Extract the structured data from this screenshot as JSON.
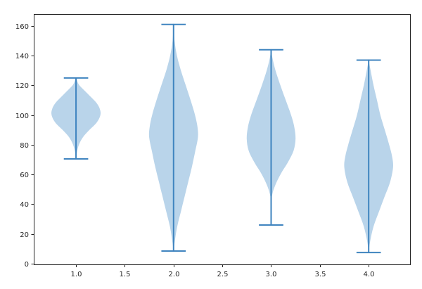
{
  "chart_data": {
    "type": "violin",
    "title": "",
    "xlabel": "",
    "ylabel": "",
    "xlim": [
      0.567,
      4.424
    ],
    "ylim": [
      -0.5,
      168.0
    ],
    "grid": false,
    "legend": null,
    "x_ticks": [
      1.0,
      1.5,
      2.0,
      2.5,
      3.0,
      3.5,
      4.0
    ],
    "x_tick_labels": [
      "1.0",
      "1.5",
      "2.0",
      "2.5",
      "3.0",
      "3.5",
      "4.0"
    ],
    "y_ticks": [
      0,
      20,
      40,
      60,
      80,
      100,
      120,
      140,
      160
    ],
    "y_tick_labels": [
      "0",
      "20",
      "40",
      "60",
      "80",
      "100",
      "120",
      "140",
      "160"
    ],
    "categories": [
      "1",
      "2",
      "3",
      "4"
    ],
    "series": [
      {
        "position": 1.0,
        "min": 70.5,
        "max": 125.0,
        "mode": 101,
        "density_profile": [
          [
            70.5,
            0.0
          ],
          [
            75,
            0.04
          ],
          [
            80,
            0.12
          ],
          [
            85,
            0.28
          ],
          [
            90,
            0.55
          ],
          [
            95,
            0.85
          ],
          [
            100,
            1.0
          ],
          [
            104,
            0.98
          ],
          [
            108,
            0.85
          ],
          [
            112,
            0.62
          ],
          [
            116,
            0.38
          ],
          [
            120,
            0.14
          ],
          [
            123,
            0.05
          ],
          [
            125,
            0.02
          ]
        ]
      },
      {
        "position": 2.0,
        "min": 8.5,
        "max": 161.0,
        "mode": 88,
        "density_profile": [
          [
            8.5,
            0.0
          ],
          [
            15,
            0.05
          ],
          [
            25,
            0.15
          ],
          [
            35,
            0.3
          ],
          [
            45,
            0.45
          ],
          [
            55,
            0.6
          ],
          [
            65,
            0.75
          ],
          [
            75,
            0.88
          ],
          [
            85,
            1.0
          ],
          [
            92,
            0.98
          ],
          [
            100,
            0.88
          ],
          [
            110,
            0.7
          ],
          [
            120,
            0.5
          ],
          [
            130,
            0.3
          ],
          [
            140,
            0.14
          ],
          [
            150,
            0.04
          ],
          [
            161,
            0.0
          ]
        ]
      },
      {
        "position": 3.0,
        "min": 26.0,
        "max": 144.0,
        "mode": 84,
        "density_profile": [
          [
            26,
            0.0
          ],
          [
            40,
            0.0
          ],
          [
            46,
            0.04
          ],
          [
            52,
            0.15
          ],
          [
            60,
            0.38
          ],
          [
            68,
            0.68
          ],
          [
            76,
            0.92
          ],
          [
            84,
            1.0
          ],
          [
            92,
            0.95
          ],
          [
            100,
            0.82
          ],
          [
            110,
            0.6
          ],
          [
            120,
            0.38
          ],
          [
            130,
            0.18
          ],
          [
            138,
            0.06
          ],
          [
            144,
            0.0
          ]
        ]
      },
      {
        "position": 4.0,
        "min": 7.5,
        "max": 137.0,
        "mode": 66,
        "density_profile": [
          [
            7.5,
            0.0
          ],
          [
            15,
            0.06
          ],
          [
            25,
            0.2
          ],
          [
            35,
            0.42
          ],
          [
            45,
            0.65
          ],
          [
            55,
            0.88
          ],
          [
            65,
            1.0
          ],
          [
            72,
            0.96
          ],
          [
            80,
            0.84
          ],
          [
            90,
            0.66
          ],
          [
            100,
            0.48
          ],
          [
            110,
            0.34
          ],
          [
            120,
            0.2
          ],
          [
            130,
            0.08
          ],
          [
            137,
            0.0
          ]
        ]
      }
    ],
    "styles": {
      "body_fill": "#b9d4ea",
      "line_color": "#3f84bf",
      "max_half_width": 0.25,
      "cap_half_width": 0.125
    }
  }
}
